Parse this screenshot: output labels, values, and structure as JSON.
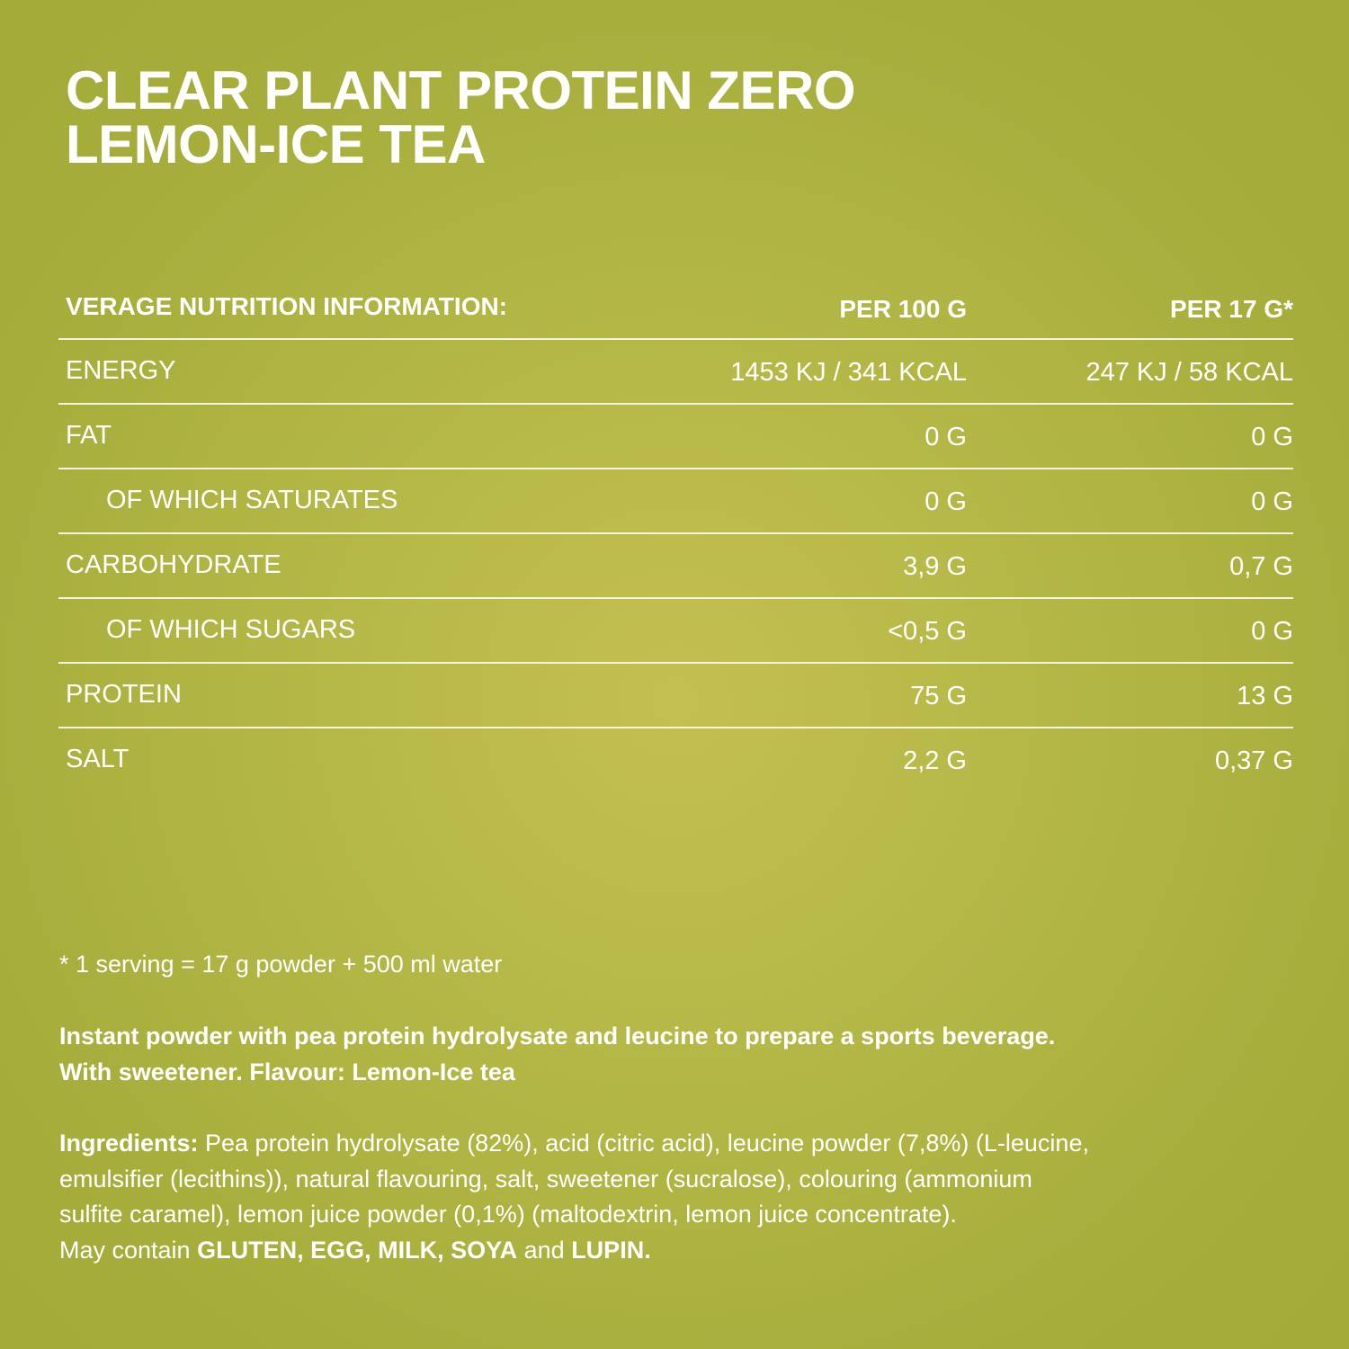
{
  "title": [
    "CLEAR PLANT PROTEIN ZERO",
    "LEMON-ICE TEA"
  ],
  "table": {
    "header": [
      "VERAGE NUTRITION INFORMATION:",
      "PER 100 G",
      "PER 17 G*"
    ],
    "rows": [
      {
        "label": "ENERGY",
        "per_100g": "1453 KJ / 341 KCAL",
        "per_serving": "247 KJ / 58 KCAL",
        "indent": false
      },
      {
        "label": "FAT",
        "per_100g": "0 G",
        "per_serving": "0 G",
        "indent": false
      },
      {
        "label": "OF WHICH SATURATES",
        "per_100g": "0 G",
        "per_serving": "0 G",
        "indent": true
      },
      {
        "label": "CARBOHYDRATE",
        "per_100g": "3,9 G",
        "per_serving": "0,7 G",
        "indent": false
      },
      {
        "label": "OF WHICH SUGARS",
        "per_100g": "<0,5 G",
        "per_serving": "0 G",
        "indent": true
      },
      {
        "label": "PROTEIN",
        "per_100g": "75 G",
        "per_serving": "13 G",
        "indent": false
      },
      {
        "label": "SALT",
        "per_100g": "2,2 G",
        "per_serving": "0,37 G",
        "indent": false
      }
    ]
  },
  "footnote": "* 1 serving = 17 g powder + 500 ml water",
  "description": [
    "Instant powder with pea protein hydrolysate and leucine to prepare a sports beverage.",
    "With sweetener. Flavour: Lemon-Ice tea"
  ],
  "ingredients": [
    [
      {
        "text": "Ingredients:",
        "bold": true
      },
      {
        "text": " Pea protein hydrolysate (82%), acid (citric acid), leucine powder (7,8%) (L-leucine,",
        "bold": false
      }
    ],
    [
      {
        "text": "emulsifier (lecithins)), natural flavouring, salt, sweetener (sucralose), colouring (ammonium",
        "bold": false
      }
    ],
    [
      {
        "text": "sulfite caramel), lemon juice powder (0,1%) (maltodextrin, lemon juice concentrate).",
        "bold": false
      }
    ],
    [
      {
        "text": "May contain ",
        "bold": false
      },
      {
        "text": "GLUTEN, EGG, MILK, SOYA",
        "bold": true
      },
      {
        "text": " and ",
        "bold": false
      },
      {
        "text": "LUPIN.",
        "bold": true
      }
    ]
  ]
}
